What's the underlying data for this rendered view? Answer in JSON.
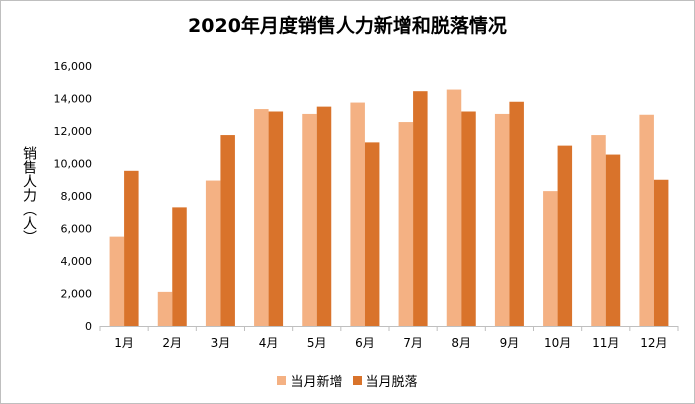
{
  "chart_data": {
    "type": "bar",
    "title": "2020年月度销售人力新增和脱落情况",
    "xlabel": "",
    "ylabel": "销售人力（人）",
    "categories": [
      "1月",
      "2月",
      "3月",
      "4月",
      "5月",
      "6月",
      "7月",
      "8月",
      "9月",
      "10月",
      "11月",
      "12月"
    ],
    "series": [
      {
        "name": "当月新增",
        "color": "#F4B183",
        "values": [
          5500,
          2100,
          8950,
          13350,
          13050,
          13750,
          12550,
          14550,
          13050,
          8300,
          11750,
          13000
        ]
      },
      {
        "name": "当月脱落",
        "color": "#D9732B",
        "values": [
          9550,
          7300,
          11750,
          13200,
          13500,
          11300,
          14450,
          13200,
          13800,
          11100,
          10550,
          9000
        ]
      }
    ],
    "ylim": [
      0,
      16000
    ],
    "yticks": [
      0,
      2000,
      4000,
      6000,
      8000,
      10000,
      12000,
      14000,
      16000
    ],
    "ytick_labels": [
      "0",
      "2,000",
      "4,000",
      "6,000",
      "8,000",
      "10,000",
      "12,000",
      "14,000",
      "16,000"
    ],
    "grid": false,
    "legend_position": "bottom"
  }
}
